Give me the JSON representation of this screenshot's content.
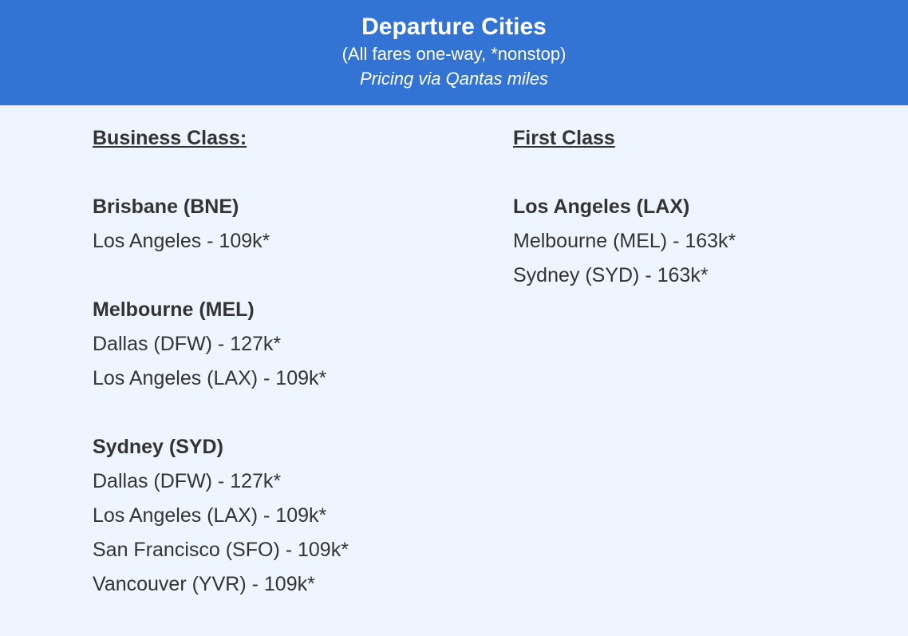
{
  "header": {
    "title": "Departure Cities",
    "subtitle": "(All fares one-way, *nonstop)",
    "note": "Pricing via Qantas miles",
    "color": "#3373d4"
  },
  "business": {
    "heading": "Business Class:",
    "groups": [
      {
        "city": "Brisbane (BNE)",
        "routes": [
          "Los Angeles - 109k*"
        ]
      },
      {
        "city": "Melbourne (MEL)",
        "routes": [
          "Dallas (DFW) - 127k*",
          "Los Angeles (LAX) - 109k*"
        ]
      },
      {
        "city": "Sydney (SYD)",
        "routes": [
          "Dallas (DFW) - 127k*",
          "Los Angeles (LAX) - 109k*",
          "San Francisco (SFO) - 109k*",
          "Vancouver (YVR) - 109k*"
        ]
      }
    ]
  },
  "first": {
    "heading": "First Class",
    "groups": [
      {
        "city": "Los Angeles (LAX)",
        "routes": [
          "Melbourne (MEL) - 163k*",
          "Sydney (SYD) - 163k*"
        ]
      }
    ]
  }
}
